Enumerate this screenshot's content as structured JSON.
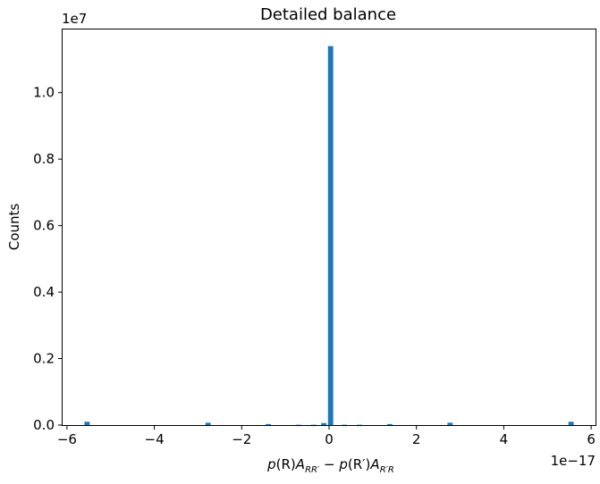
{
  "chart_data": {
    "type": "bar",
    "title": "Detailed balance",
    "xlabel": {
      "p": "p",
      "rParen": "(R)",
      "A": "A",
      "sub1": "RR′",
      "minus": " − ",
      "p2": "p",
      "rPrimeParen": "(R′)",
      "A2": "A",
      "sub2": "R′R"
    },
    "ylabel": "Counts",
    "x_offset_label": "1e−17",
    "y_offset_label": "1e7",
    "xlim": [
      -6.1,
      6.1
    ],
    "ylim": [
      0,
      1.19
    ],
    "x_ticks": [
      -6,
      -4,
      -2,
      0,
      2,
      4,
      6
    ],
    "x_tick_labels": [
      "−6",
      "−4",
      "−2",
      "0",
      "2",
      "4",
      "6"
    ],
    "y_ticks": [
      0.0,
      0.2,
      0.4,
      0.6,
      0.8,
      1.0
    ],
    "y_tick_labels": [
      "0.0",
      "0.2",
      "0.4",
      "0.6",
      "0.8",
      "1.0"
    ],
    "bar_color": "#1f77b4",
    "bin_width": 0.12,
    "bins": [
      {
        "x": -5.54,
        "count": 0.01
      },
      {
        "x": -2.77,
        "count": 0.007
      },
      {
        "x": -1.39,
        "count": 0.003
      },
      {
        "x": -0.7,
        "count": 0.001
      },
      {
        "x": -0.35,
        "count": 0.001
      },
      {
        "x": -0.12,
        "count": 0.006
      },
      {
        "x": 0.035,
        "count": 1.14
      },
      {
        "x": 0.35,
        "count": 0.001
      },
      {
        "x": 0.7,
        "count": 0.001
      },
      {
        "x": 1.39,
        "count": 0.003
      },
      {
        "x": 2.77,
        "count": 0.007
      },
      {
        "x": 5.54,
        "count": 0.01
      }
    ]
  }
}
